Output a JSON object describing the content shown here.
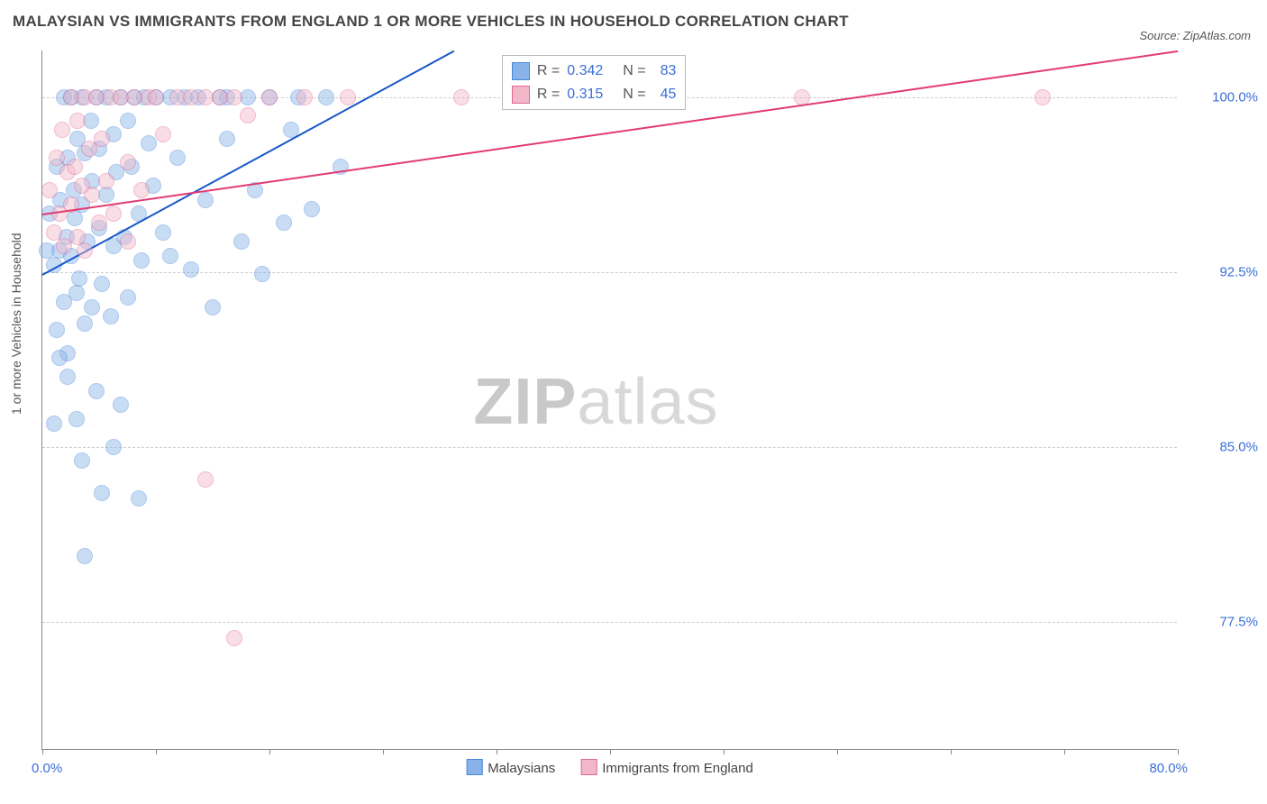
{
  "title": "MALAYSIAN VS IMMIGRANTS FROM ENGLAND 1 OR MORE VEHICLES IN HOUSEHOLD CORRELATION CHART",
  "source": "Source: ZipAtlas.com",
  "ylabel": "1 or more Vehicles in Household",
  "watermark": {
    "bold": "ZIP",
    "rest": "atlas"
  },
  "chart": {
    "type": "scatter",
    "xlim": [
      0,
      80
    ],
    "ylim": [
      72,
      102
    ],
    "yticks": [
      77.5,
      85.0,
      92.5,
      100.0
    ],
    "ytick_labels": [
      "77.5%",
      "85.0%",
      "92.5%",
      "100.0%"
    ],
    "xtick_marks": [
      0,
      8,
      16,
      24,
      32,
      40,
      48,
      56,
      64,
      72,
      80
    ],
    "xtick0_label": "0.0%",
    "xtickEnd_label": "80.0%",
    "background_color": "#ffffff",
    "grid_color": "#cccccc",
    "axis_color": "#888888",
    "label_color": "#3a6fd8",
    "marker_radius": 9,
    "marker_opacity": 0.45,
    "marker_stroke_width": 1
  },
  "series": [
    {
      "name": "Malaysians",
      "color_fill": "#87b3e8",
      "color_stroke": "#4a86d9",
      "trend_color": "#1757c9",
      "R": "0.342",
      "N": "83",
      "trend": {
        "x1": 0,
        "y1": 92.4,
        "x2": 29,
        "y2": 102.0
      },
      "points": [
        [
          0.3,
          93.4
        ],
        [
          0.5,
          95.0
        ],
        [
          0.8,
          92.8
        ],
        [
          1.0,
          90.0
        ],
        [
          1.0,
          97.0
        ],
        [
          1.2,
          93.4
        ],
        [
          1.3,
          95.6
        ],
        [
          1.5,
          100.0
        ],
        [
          1.5,
          91.2
        ],
        [
          1.7,
          94.0
        ],
        [
          1.8,
          97.4
        ],
        [
          1.8,
          89.0
        ],
        [
          2.0,
          93.2
        ],
        [
          2.0,
          100.0
        ],
        [
          2.2,
          96.0
        ],
        [
          2.3,
          94.8
        ],
        [
          2.4,
          91.6
        ],
        [
          2.5,
          98.2
        ],
        [
          2.6,
          92.2
        ],
        [
          2.8,
          100.0
        ],
        [
          2.8,
          95.4
        ],
        [
          3.0,
          97.6
        ],
        [
          3.0,
          90.3
        ],
        [
          3.2,
          93.8
        ],
        [
          3.4,
          99.0
        ],
        [
          3.5,
          96.4
        ],
        [
          3.5,
          91.0
        ],
        [
          3.8,
          100.0
        ],
        [
          4.0,
          94.4
        ],
        [
          4.0,
          97.8
        ],
        [
          4.2,
          92.0
        ],
        [
          4.5,
          95.8
        ],
        [
          4.5,
          100.0
        ],
        [
          4.8,
          90.6
        ],
        [
          5.0,
          98.4
        ],
        [
          5.0,
          93.6
        ],
        [
          5.2,
          96.8
        ],
        [
          5.5,
          100.0
        ],
        [
          5.8,
          94.0
        ],
        [
          6.0,
          99.0
        ],
        [
          6.0,
          91.4
        ],
        [
          6.3,
          97.0
        ],
        [
          6.5,
          100.0
        ],
        [
          6.8,
          95.0
        ],
        [
          7.0,
          93.0
        ],
        [
          7.2,
          100.0
        ],
        [
          7.5,
          98.0
        ],
        [
          7.8,
          96.2
        ],
        [
          8.0,
          100.0
        ],
        [
          8.5,
          94.2
        ],
        [
          9.0,
          100.0
        ],
        [
          9.0,
          93.2
        ],
        [
          9.5,
          97.4
        ],
        [
          10.0,
          100.0
        ],
        [
          10.5,
          92.6
        ],
        [
          11.0,
          100.0
        ],
        [
          11.5,
          95.6
        ],
        [
          12.0,
          91.0
        ],
        [
          12.5,
          100.0
        ],
        [
          13.0,
          98.2
        ],
        [
          13.0,
          100.0
        ],
        [
          14.0,
          93.8
        ],
        [
          14.5,
          100.0
        ],
        [
          15.0,
          96.0
        ],
        [
          15.5,
          92.4
        ],
        [
          16.0,
          100.0
        ],
        [
          17.0,
          94.6
        ],
        [
          17.5,
          98.6
        ],
        [
          18.0,
          100.0
        ],
        [
          19.0,
          95.2
        ],
        [
          20.0,
          100.0
        ],
        [
          21.0,
          97.0
        ],
        [
          1.8,
          88.0
        ],
        [
          2.4,
          86.2
        ],
        [
          3.8,
          87.4
        ],
        [
          5.0,
          85.0
        ],
        [
          4.2,
          83.0
        ],
        [
          6.8,
          82.8
        ],
        [
          3.0,
          80.3
        ],
        [
          5.5,
          86.8
        ],
        [
          2.8,
          84.4
        ],
        [
          1.2,
          88.8
        ],
        [
          0.8,
          86.0
        ]
      ]
    },
    {
      "name": "Immigrants from England",
      "color_fill": "#f2b7c8",
      "color_stroke": "#e06993",
      "trend_color": "#e23a72",
      "R": "0.315",
      "N": "45",
      "trend": {
        "x1": 0,
        "y1": 95.0,
        "x2": 80,
        "y2": 102.0
      },
      "points": [
        [
          0.5,
          96.0
        ],
        [
          0.8,
          94.2
        ],
        [
          1.0,
          97.4
        ],
        [
          1.2,
          95.0
        ],
        [
          1.4,
          98.6
        ],
        [
          1.5,
          93.6
        ],
        [
          1.8,
          96.8
        ],
        [
          2.0,
          100.0
        ],
        [
          2.0,
          95.4
        ],
        [
          2.3,
          97.0
        ],
        [
          2.5,
          94.0
        ],
        [
          2.5,
          99.0
        ],
        [
          2.8,
          96.2
        ],
        [
          3.0,
          100.0
        ],
        [
          3.0,
          93.4
        ],
        [
          3.3,
          97.8
        ],
        [
          3.5,
          95.8
        ],
        [
          3.8,
          100.0
        ],
        [
          4.0,
          94.6
        ],
        [
          4.2,
          98.2
        ],
        [
          4.5,
          96.4
        ],
        [
          4.8,
          100.0
        ],
        [
          5.0,
          95.0
        ],
        [
          5.5,
          100.0
        ],
        [
          6.0,
          97.2
        ],
        [
          6.0,
          93.8
        ],
        [
          6.5,
          100.0
        ],
        [
          7.0,
          96.0
        ],
        [
          7.5,
          100.0
        ],
        [
          8.0,
          100.0
        ],
        [
          8.5,
          98.4
        ],
        [
          9.5,
          100.0
        ],
        [
          10.5,
          100.0
        ],
        [
          11.5,
          100.0
        ],
        [
          12.5,
          100.0
        ],
        [
          13.5,
          100.0
        ],
        [
          14.5,
          99.2
        ],
        [
          16.0,
          100.0
        ],
        [
          18.5,
          100.0
        ],
        [
          21.5,
          100.0
        ],
        [
          29.5,
          100.0
        ],
        [
          53.5,
          100.0
        ],
        [
          70.5,
          100.0
        ],
        [
          11.5,
          83.6
        ],
        [
          13.5,
          76.8
        ]
      ]
    }
  ],
  "legend_box": {
    "left_pct": 40.5,
    "top_y": 101.8
  },
  "legend_bottom": {
    "items": [
      {
        "label": "Malaysians",
        "fill": "#87b3e8",
        "stroke": "#4a86d9"
      },
      {
        "label": "Immigrants from England",
        "fill": "#f2b7c8",
        "stroke": "#e06993"
      }
    ]
  }
}
